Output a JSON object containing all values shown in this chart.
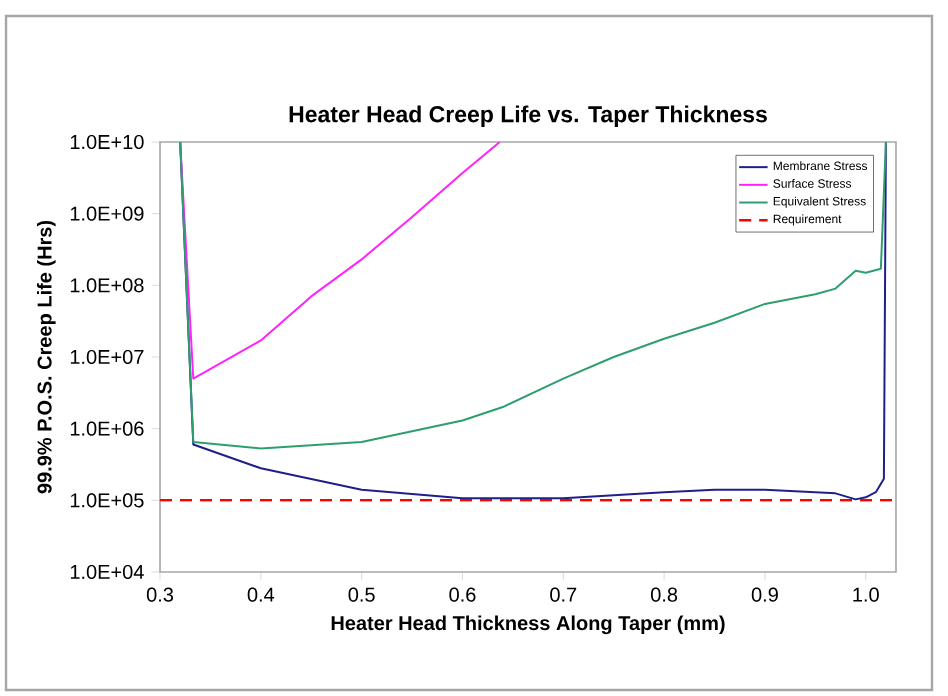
{
  "chart_data": {
    "type": "line",
    "title": "Heater Head Creep Life vs. Taper Thickness",
    "xlabel": "Heater Head Thickness Along Taper (mm)",
    "ylabel": "99.9% P.O.S. Creep Life (Hrs)",
    "log": "y",
    "legend": "top right",
    "grid": false,
    "marker": "none",
    "xlim": [
      0.3,
      1.03
    ],
    "ylim": [
      10000,
      10000000000
    ],
    "xticks": [
      0.3,
      0.4,
      0.5,
      0.6,
      0.7,
      0.8,
      0.9,
      {
        "value": 1.0,
        "label": "1.0"
      }
    ],
    "yticks": [
      {
        "value": 10000,
        "label": "1.0E+04"
      },
      {
        "value": 100000,
        "label": "1.0E+05"
      },
      {
        "value": 1000000,
        "label": "1.0E+06"
      },
      {
        "value": 10000000,
        "label": "1.0E+07"
      },
      {
        "value": 100000000,
        "label": "1.0E+08"
      },
      {
        "value": 1000000000,
        "label": "1.0E+09"
      },
      {
        "value": 10000000000,
        "label": "1.0E+10"
      }
    ],
    "series": [
      {
        "name": "Membrane Stress",
        "color": "#1f1f8c",
        "x": [
          0.32,
          0.333,
          0.4,
          0.5,
          0.6,
          0.7,
          0.8,
          0.85,
          0.9,
          0.97,
          0.99,
          1.0,
          1.01,
          1.018,
          1.02
        ],
        "values": [
          10000000000,
          600000,
          280000,
          140000,
          107000,
          107000,
          130000,
          140000,
          140000,
          125000,
          103000,
          110000,
          130000,
          200000,
          10000000000
        ]
      },
      {
        "name": "Surface Stress",
        "color": "#ff22ff",
        "x": [
          0.32,
          0.333,
          0.4,
          0.45,
          0.5,
          0.55,
          0.6,
          0.637
        ],
        "values": [
          10000000000,
          5000000,
          17000000,
          70000000,
          230000000,
          900000000,
          3700000000,
          10000000000
        ]
      },
      {
        "name": "Equivalent Stress",
        "color": "#2e9e6e",
        "x": [
          0.32,
          0.333,
          0.4,
          0.5,
          0.6,
          0.64,
          0.7,
          0.75,
          0.8,
          0.85,
          0.9,
          0.95,
          0.97,
          0.99,
          1.0,
          1.015,
          1.02
        ],
        "values": [
          10000000000,
          650000,
          530000,
          650000,
          1300000,
          2000000,
          5000000,
          10000000,
          18000000,
          30000000,
          55000000,
          75000000,
          90000000,
          160000000,
          150000000,
          170000000,
          10000000000
        ]
      }
    ],
    "ref_lines": [
      {
        "axis": "y",
        "value": 100000,
        "label": "Requirement",
        "color": "#ff0000",
        "line_style": "dashed"
      }
    ]
  }
}
